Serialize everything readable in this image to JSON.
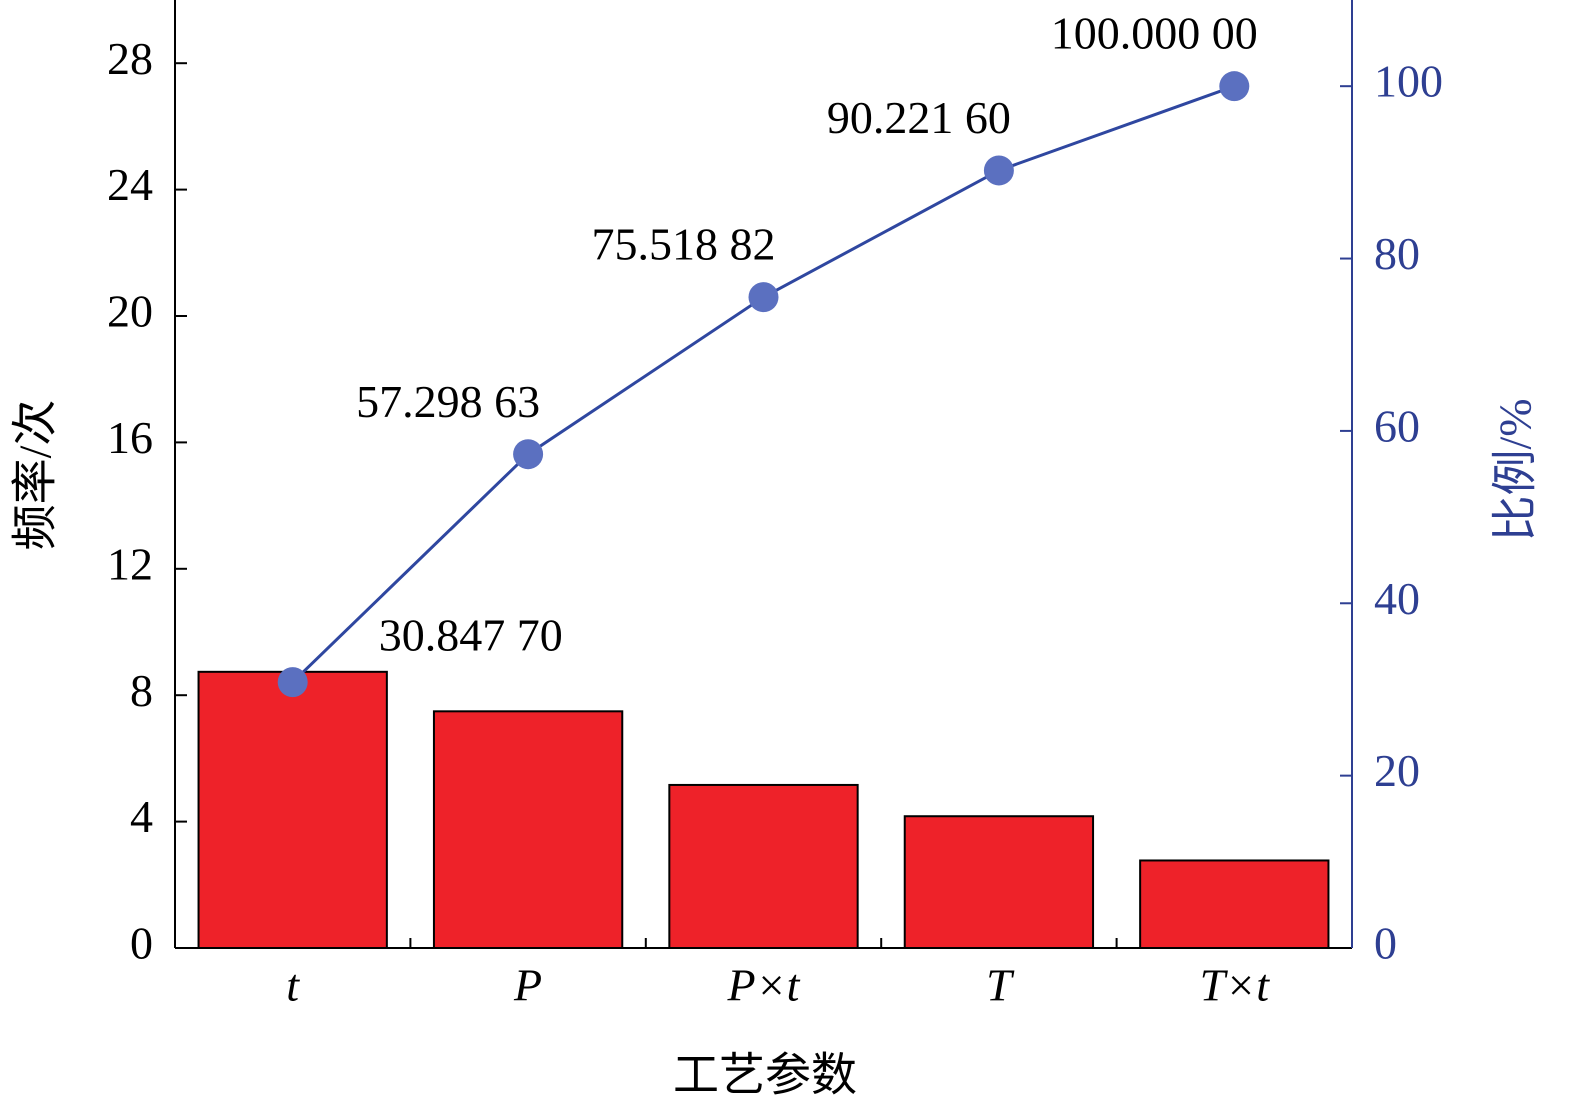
{
  "chart_data": {
    "type": "bar",
    "x_label": "工艺参数",
    "y_label": "频率/次",
    "y2_label": "比例/%",
    "categories": [
      "t",
      "P",
      "P×t",
      "T",
      "T×t"
    ],
    "series": [
      {
        "type": "bar",
        "color": "#ee2229",
        "values": [
          8.74,
          7.49,
          5.16,
          4.17,
          2.77
        ]
      },
      {
        "type": "line",
        "axis": "y2",
        "color": "#5b70c0",
        "line_color": "#2f47a0",
        "values": [
          30.8477,
          57.29863,
          75.51882,
          90.2216,
          100
        ],
        "value_labels": [
          "30.847 70",
          "57.298 63",
          "75.518 82",
          "90.221 60",
          "100.000 00"
        ]
      }
    ],
    "ylim": [
      0,
      30
    ],
    "yticks": [
      0,
      4,
      8,
      12,
      16,
      20,
      24,
      28
    ],
    "y2lim": [
      0,
      110
    ],
    "y2ticks": [
      0,
      20,
      40,
      60,
      80,
      100
    ],
    "y2_color": "#2e3f92"
  }
}
